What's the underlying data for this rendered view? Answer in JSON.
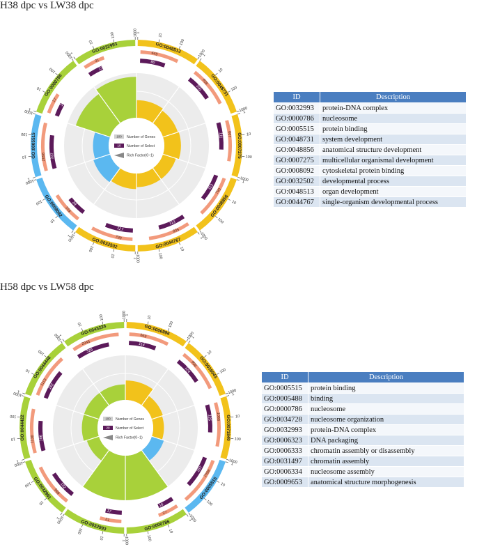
{
  "chart_data": [
    {
      "type": "circos-go-enrichment",
      "title": "H38 dpc vs LW38 dpc",
      "legend": {
        "genes": "Number of Genes",
        "select": "Number of Select",
        "rich": "Rich Factor(0~1)",
        "genes_sample": "100",
        "select_sample": "10"
      },
      "axis_ticks": [
        "1",
        "10",
        "100",
        "1000"
      ],
      "categories": [
        {
          "id": "GO:0048513",
          "genes": 449,
          "select": 80,
          "rich": 0.18,
          "color": "#f2c21b"
        },
        {
          "id": "GO:0048731",
          "genes": 638,
          "select": 100,
          "rich": 0.16,
          "color": "#f2c21b"
        },
        {
          "id": "GO:0007275",
          "genes": 667,
          "select": 111,
          "rich": 0.17,
          "color": "#f2c21b"
        },
        {
          "id": "GO:0048856",
          "genes": 790,
          "select": 113,
          "rich": 0.14,
          "color": "#f2c21b"
        },
        {
          "id": "GO:0044767",
          "genes": 805,
          "select": 113,
          "rich": 0.14,
          "color": "#f2c21b"
        },
        {
          "id": "GO:0032502",
          "genes": 799,
          "select": 127,
          "rich": 0.16,
          "color": "#f2c21b"
        },
        {
          "id": "GO:0008092",
          "genes": 159,
          "select": 28,
          "rich": 0.18,
          "color": "#5bb8f0"
        },
        {
          "id": "GO:0005515",
          "genes": 2098,
          "select": 337,
          "rich": 0.16,
          "color": "#5bb8f0"
        },
        {
          "id": "GO:0000786",
          "genes": 27,
          "select": 10,
          "rich": 0.37,
          "color": "#a8d13a"
        },
        {
          "id": "GO:0032993",
          "genes": 31,
          "select": 13,
          "rich": 0.42,
          "color": "#a8d13a"
        }
      ],
      "table": {
        "header": [
          "ID",
          "Description"
        ],
        "rows": [
          [
            "GO:0032993",
            "protein-DNA complex"
          ],
          [
            "GO:0000786",
            "nucleosome"
          ],
          [
            "GO:0005515",
            "protein binding"
          ],
          [
            "GO:0048731",
            "system development"
          ],
          [
            "GO:0048856",
            "anatomical structure development"
          ],
          [
            "GO:0007275",
            "multicellular organismal development"
          ],
          [
            "GO:0008092",
            "cytoskeletal protein binding"
          ],
          [
            "GO:0032502",
            "developmental process"
          ],
          [
            "GO:0048513",
            "organ development"
          ],
          [
            "GO:0044767",
            "single-organism developmental process"
          ]
        ]
      }
    },
    {
      "type": "circos-go-enrichment",
      "title": "H58 dpc vs LW58 dpc",
      "legend": {
        "genes": "Number of Genes",
        "select": "Number of Select",
        "rich": "Rich Factor(0~1)",
        "genes_sample": "100",
        "select_sample": "20"
      },
      "axis_ticks": [
        "1",
        "10",
        "100",
        "1000"
      ],
      "categories": [
        {
          "id": "GO:0006996",
          "genes": 569,
          "select": 114,
          "rich": 0.2,
          "color": "#f2c21b"
        },
        {
          "id": "GO:0016043",
          "genes": 996,
          "select": 124,
          "rich": 0.12,
          "color": "#f2c21b"
        },
        {
          "id": "GO:0071840",
          "genes": 1088,
          "select": 125,
          "rich": 0.11,
          "color": "#f2c21b"
        },
        {
          "id": "GO:0005515",
          "genes": 2098,
          "select": 267,
          "rich": 0.13,
          "color": "#5bb8f0"
        },
        {
          "id": "GO:0000786",
          "genes": 27,
          "select": 16,
          "rich": 0.59,
          "color": "#a8d13a"
        },
        {
          "id": "GO:0032993",
          "genes": 31,
          "select": 17,
          "rich": 0.55,
          "color": "#a8d13a"
        },
        {
          "id": "GO:0032991",
          "genes": 999,
          "select": 132,
          "rich": 0.13,
          "color": "#a8d13a"
        },
        {
          "id": "GO:0044422",
          "genes": 1130,
          "select": 186,
          "rich": 0.16,
          "color": "#a8d13a"
        },
        {
          "id": "GO:0044446",
          "genes": 1113,
          "select": 183,
          "rich": 0.16,
          "color": "#a8d13a"
        },
        {
          "id": "GO:0043226",
          "genes": 2045,
          "select": 329,
          "rich": 0.16,
          "color": "#a8d13a"
        }
      ],
      "table": {
        "header": [
          "ID",
          "Description"
        ],
        "rows": [
          [
            "GO:0005515",
            "protein binding"
          ],
          [
            "GO:0005488",
            "binding"
          ],
          [
            "GO:0000786",
            "nucleosome"
          ],
          [
            "GO:0034728",
            "nucleosome organization"
          ],
          [
            "GO:0032993",
            "protein-DNA complex"
          ],
          [
            "GO:0006323",
            "DNA packaging"
          ],
          [
            "GO:0006333",
            "chromatin assembly or disassembly"
          ],
          [
            "GO:0031497",
            "chromatin assembly"
          ],
          [
            "GO:0006334",
            "nucleosome assembly"
          ],
          [
            "GO:0009653",
            "anatomical structure morphogenesis"
          ]
        ]
      }
    }
  ]
}
